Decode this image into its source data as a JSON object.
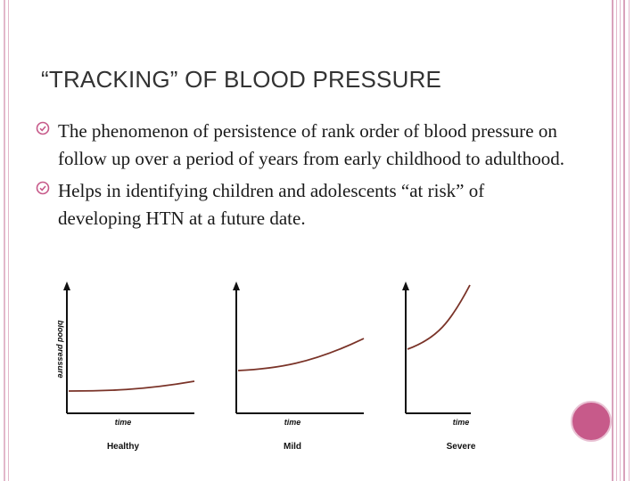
{
  "slide": {
    "title": "“TRACKING” OF BLOOD PRESSURE",
    "bullets": [
      "The phenomenon of persistence of rank order of blood pressure on follow up over a period of years from early childhood to adulthood.",
      "Helps in identifying children and adolescents “at risk” of developing HTN at a future date."
    ],
    "bullet_icon": "circle-check-icon"
  },
  "colors": {
    "accent": "#c75a8a",
    "stripe": "#e3b7cb",
    "curve": "#7a3328",
    "text": "#1a1a1a"
  },
  "chart_data": [
    {
      "type": "line",
      "title": "Healthy",
      "xlabel": "time",
      "ylabel": "blood pressure",
      "series": [
        {
          "shape": "flat-slightly-rising"
        }
      ]
    },
    {
      "type": "line",
      "title": "Mild",
      "xlabel": "time",
      "ylabel": "",
      "series": [
        {
          "shape": "moderately-rising"
        }
      ]
    },
    {
      "type": "line",
      "title": "Severe",
      "xlabel": "time",
      "ylabel": "",
      "series": [
        {
          "shape": "steeply-rising"
        }
      ]
    }
  ]
}
